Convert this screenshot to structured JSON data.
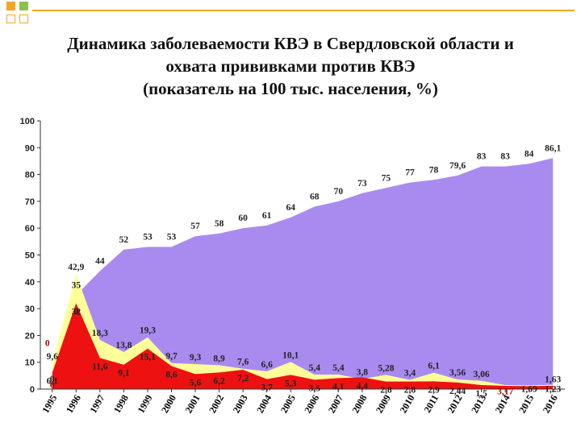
{
  "title_lines": [
    "Динамика заболеваемости КВЭ в Свердловской области и",
    "охвата прививками против КВЭ",
    "(показатель на 100 тыс. населения, %)"
  ],
  "colors": {
    "coverage": "#a98bf0",
    "incidence_a": "#ffff99",
    "incidence_b": "#ee1111",
    "label_dark": "#222222",
    "label_red": "#b00000",
    "deco_orange": "#f5a623",
    "deco_green": "#8bc34a"
  },
  "chart_data": {
    "type": "area",
    "title": "",
    "xlabel": "",
    "ylabel": "",
    "ylim": [
      0,
      100
    ],
    "yticks": [
      "0",
      "10",
      "20",
      "30",
      "40",
      "50",
      "60",
      "70",
      "80",
      "90",
      "100"
    ],
    "categories": [
      "1995",
      "1996",
      "1997",
      "1998",
      "1999",
      "2000",
      "2001",
      "2002",
      "2003",
      "2004",
      "2005",
      "2006",
      "2007",
      "2008",
      "2009",
      "2010",
      "2011",
      "2012",
      "2013",
      "2014",
      "2015",
      "2016"
    ],
    "series": [
      {
        "key": "coverage",
        "values": [
          0,
          35,
          44,
          52,
          53,
          53,
          57,
          58,
          60,
          61,
          64,
          68,
          70,
          73,
          75,
          77,
          78,
          79.6,
          83,
          83,
          84,
          86.1
        ],
        "labels": [
          "0",
          "35",
          "44",
          "52",
          "53",
          "53",
          "57",
          "58",
          "60",
          "61",
          "64",
          "68",
          "70",
          "73",
          "75",
          "77",
          "78",
          "79,6",
          "83",
          "83",
          "84",
          "86,1"
        ]
      },
      {
        "key": "incidence_a",
        "values": [
          9.6,
          42.9,
          18.3,
          13.8,
          19.3,
          9.7,
          9.3,
          8.9,
          7.6,
          6.6,
          10.1,
          5.4,
          5.4,
          3.8,
          5.28,
          3.4,
          6.1,
          3.56,
          3.06,
          1.5,
          1.4,
          1.63
        ],
        "labels": [
          "9,6",
          "42,9",
          "18,3",
          "13,8",
          "19,3",
          "9,7",
          "9,3",
          "8,9",
          "7,6",
          "6,6",
          "10,1",
          "5,4",
          "5,4",
          "3,8",
          "5,28",
          "3,4",
          "6,1",
          "3,56",
          "3,06",
          "",
          "",
          ""
        ]
      },
      {
        "key": "incidence_b",
        "values": [
          6.1,
          32,
          11.6,
          9.1,
          15.1,
          8.6,
          5.6,
          6.2,
          7.2,
          3.7,
          5.3,
          3.5,
          4.1,
          4.4,
          2.8,
          2.8,
          2.9,
          2.44,
          1.5,
          1.2,
          1.1,
          1.23
        ],
        "labels": [
          "6,1",
          "32",
          "11,6",
          "9,1",
          "15,1",
          "8,6",
          "5,6",
          "6,2",
          "7,2",
          "3,7",
          "5,3",
          "3,5",
          "4,1",
          "4,4",
          "2,8",
          "2,8",
          "2,9",
          "2,44",
          "1,5",
          "",
          "",
          ""
        ]
      }
    ],
    "extra_labels": [
      "0",
      "0",
      "0",
      "3,17",
      "1,69",
      "1,63",
      "1,23"
    ],
    "grid": false,
    "legend": "none"
  }
}
